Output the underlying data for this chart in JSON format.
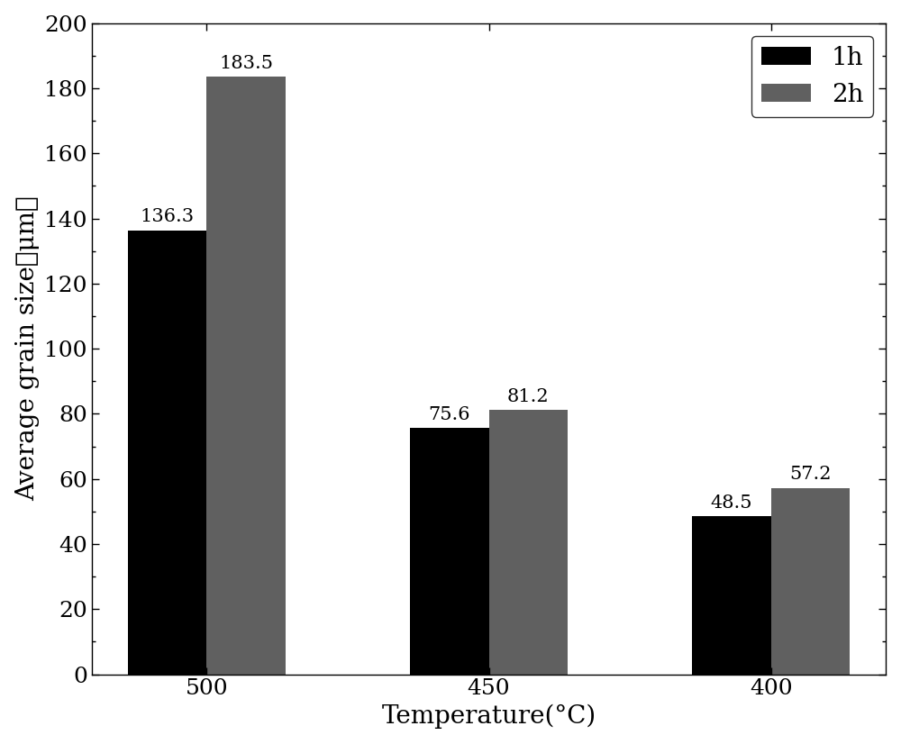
{
  "categories": [
    "500",
    "450",
    "400"
  ],
  "values_1h": [
    136.3,
    75.6,
    48.5
  ],
  "values_2h": [
    183.5,
    81.2,
    57.2
  ],
  "color_1h": "#000000",
  "color_2h": "#606060",
  "legend_labels": [
    "1h",
    "2h"
  ],
  "xlabel": "Temperature(°C)",
  "ylabel": "Average grain size（μm）",
  "ylim": [
    0,
    200
  ],
  "yticks": [
    0,
    20,
    40,
    60,
    80,
    100,
    120,
    140,
    160,
    180,
    200
  ],
  "bar_width": 0.28,
  "title": "",
  "legend_fontsize": 20,
  "axis_fontsize": 20,
  "tick_fontsize": 18,
  "label_fontsize": 15
}
